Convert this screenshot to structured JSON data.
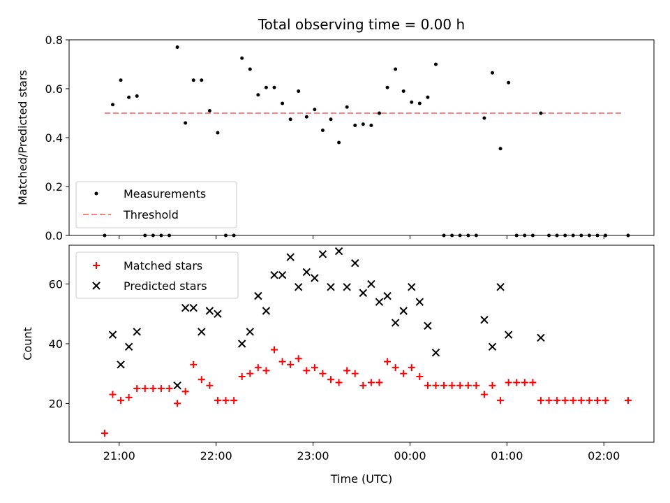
{
  "chart_data": [
    {
      "type": "scatter",
      "title": "Total observing time = 0.00 h",
      "xlabel": "",
      "ylabel": "Matched/Predicted stars",
      "ylim": [
        0,
        0.8
      ],
      "yticks": [
        "0.0",
        "0.2",
        "0.4",
        "0.6",
        "0.8"
      ],
      "legend": {
        "position": "lower-left",
        "entries": [
          "Measurements",
          "Threshold"
        ]
      },
      "threshold": {
        "name": "Threshold",
        "value": 0.5,
        "x_start": "20:51",
        "x_end": "02:12",
        "color": "#ff7f7f"
      },
      "series": [
        {
          "name": "Measurements",
          "color": "#000000",
          "x": [
            "20:51",
            "20:56",
            "21:01",
            "21:06",
            "21:11",
            "21:16",
            "21:21",
            "21:26",
            "21:31",
            "21:36",
            "21:41",
            "21:46",
            "21:51",
            "21:56",
            "22:01",
            "22:06",
            "22:11",
            "22:16",
            "22:21",
            "22:26",
            "22:31",
            "22:36",
            "22:41",
            "22:46",
            "22:51",
            "22:56",
            "23:01",
            "23:06",
            "23:11",
            "23:16",
            "23:21",
            "23:26",
            "23:31",
            "23:36",
            "23:41",
            "23:46",
            "23:51",
            "23:56",
            "00:01",
            "00:06",
            "00:11",
            "00:16",
            "00:21",
            "00:26",
            "00:31",
            "00:36",
            "00:41",
            "00:46",
            "00:51",
            "00:56",
            "01:01",
            "01:06",
            "01:11",
            "01:16",
            "01:21",
            "01:26",
            "01:31",
            "01:36",
            "01:41",
            "01:46",
            "01:51",
            "01:56",
            "02:01",
            "02:15"
          ],
          "y": [
            0.0,
            0.535,
            0.635,
            0.565,
            0.57,
            0.0,
            0.0,
            0.0,
            0.0,
            0.77,
            0.46,
            0.635,
            0.635,
            0.51,
            0.42,
            0.0,
            0.0,
            0.725,
            0.68,
            0.575,
            0.605,
            0.605,
            0.54,
            0.475,
            0.59,
            0.485,
            0.515,
            0.43,
            0.475,
            0.38,
            0.525,
            0.45,
            0.455,
            0.45,
            0.5,
            0.605,
            0.68,
            0.59,
            0.545,
            0.54,
            0.565,
            0.7,
            0.0,
            0.0,
            0.0,
            0.0,
            0.0,
            0.48,
            0.665,
            0.355,
            0.625,
            0.0,
            0.0,
            0.0,
            0.5,
            0.0,
            0.0,
            0.0,
            0.0,
            0.0,
            0.0,
            0.0,
            0.0,
            0.0
          ]
        }
      ]
    },
    {
      "type": "scatter",
      "title": "",
      "xlabel": "Time (UTC)",
      "ylabel": "Count",
      "ylim": [
        7,
        73
      ],
      "yticks": [
        "20",
        "40",
        "60"
      ],
      "xlim": [
        "20:29",
        "02:31"
      ],
      "xticks": [
        "21:00",
        "22:00",
        "23:00",
        "00:00",
        "01:00",
        "02:00"
      ],
      "legend": {
        "position": "upper-left",
        "entries": [
          "Matched stars",
          "Predicted stars"
        ]
      },
      "series": [
        {
          "name": "Matched stars",
          "marker": "plus",
          "color": "#ff0000",
          "x": [
            "20:51",
            "20:56",
            "21:01",
            "21:06",
            "21:11",
            "21:16",
            "21:21",
            "21:26",
            "21:31",
            "21:36",
            "21:41",
            "21:46",
            "21:51",
            "21:56",
            "22:01",
            "22:06",
            "22:11",
            "22:16",
            "22:21",
            "22:26",
            "22:31",
            "22:36",
            "22:41",
            "22:46",
            "22:51",
            "22:56",
            "23:01",
            "23:06",
            "23:11",
            "23:16",
            "23:21",
            "23:26",
            "23:31",
            "23:36",
            "23:41",
            "23:46",
            "23:51",
            "23:56",
            "00:01",
            "00:06",
            "00:11",
            "00:16",
            "00:21",
            "00:26",
            "00:31",
            "00:36",
            "00:41",
            "00:46",
            "00:51",
            "00:56",
            "01:01",
            "01:06",
            "01:11",
            "01:16",
            "01:21",
            "01:26",
            "01:31",
            "01:36",
            "01:41",
            "01:46",
            "01:51",
            "01:56",
            "02:01",
            "02:15"
          ],
          "y": [
            10,
            23,
            21,
            22,
            25,
            25,
            25,
            25,
            25,
            20,
            24,
            33,
            28,
            26,
            21,
            21,
            21,
            29,
            30,
            32,
            31,
            38,
            34,
            33,
            35,
            31,
            32,
            30,
            28,
            27,
            31,
            30,
            26,
            27,
            27,
            34,
            32,
            30,
            32,
            29,
            26,
            26,
            26,
            26,
            26,
            26,
            26,
            23,
            26,
            21,
            27,
            27,
            27,
            27,
            21,
            21,
            21,
            21,
            21,
            21,
            21,
            21,
            21,
            21
          ]
        },
        {
          "name": "Predicted stars",
          "marker": "x",
          "color": "#000000",
          "x": [
            "20:56",
            "21:01",
            "21:06",
            "21:11",
            "21:36",
            "21:41",
            "21:46",
            "21:51",
            "21:56",
            "22:01",
            "22:16",
            "22:21",
            "22:26",
            "22:31",
            "22:36",
            "22:41",
            "22:46",
            "22:51",
            "22:56",
            "23:01",
            "23:06",
            "23:11",
            "23:16",
            "23:21",
            "23:26",
            "23:31",
            "23:36",
            "23:41",
            "23:46",
            "23:51",
            "23:56",
            "00:01",
            "00:06",
            "00:11",
            "00:16",
            "00:46",
            "00:51",
            "00:56",
            "01:01",
            "01:21"
          ],
          "y": [
            43,
            33,
            39,
            44,
            26,
            52,
            52,
            44,
            51,
            50,
            40,
            44,
            56,
            51,
            63,
            63,
            69,
            59,
            64,
            62,
            70,
            59,
            71,
            59,
            67,
            57,
            60,
            54,
            56,
            47,
            51,
            59,
            54,
            46,
            37,
            48,
            39,
            59,
            43,
            42
          ]
        }
      ]
    }
  ]
}
